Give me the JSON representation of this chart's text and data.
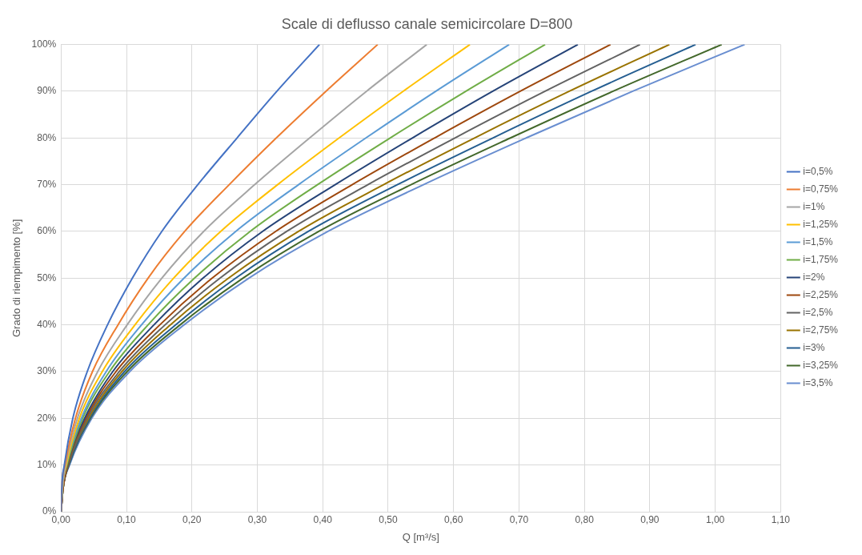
{
  "chart_data": {
    "type": "line",
    "title": "Scale di deflusso canale semicircolare D=800",
    "xlabel": "Q [m³/s]",
    "ylabel": "Grado di riempimento [%]",
    "xlim": [
      0,
      1.1
    ],
    "xticks": [
      {
        "value": 0,
        "label": "0,00"
      },
      {
        "value": 0.1,
        "label": "0,10"
      },
      {
        "value": 0.2,
        "label": "0,20"
      },
      {
        "value": 0.3,
        "label": "0,30"
      },
      {
        "value": 0.4,
        "label": "0,40"
      },
      {
        "value": 0.5,
        "label": "0,50"
      },
      {
        "value": 0.6,
        "label": "0,60"
      },
      {
        "value": 0.7,
        "label": "0,70"
      },
      {
        "value": 0.8,
        "label": "0,80"
      },
      {
        "value": 0.9,
        "label": "0,90"
      },
      {
        "value": 1.0,
        "label": "1,00"
      },
      {
        "value": 1.1,
        "label": "1,10"
      }
    ],
    "ylim": [
      0,
      100
    ],
    "yticks": [
      {
        "value": 0,
        "label": "0%"
      },
      {
        "value": 10,
        "label": "10%"
      },
      {
        "value": 20,
        "label": "20%"
      },
      {
        "value": 30,
        "label": "30%"
      },
      {
        "value": 40,
        "label": "40%"
      },
      {
        "value": 50,
        "label": "50%"
      },
      {
        "value": 60,
        "label": "60%"
      },
      {
        "value": 70,
        "label": "70%"
      },
      {
        "value": 80,
        "label": "80%"
      },
      {
        "value": 90,
        "label": "90%"
      },
      {
        "value": 100,
        "label": "100%"
      }
    ],
    "grid": true,
    "legend": "right",
    "marker": "none",
    "line_style": "solid",
    "series": [
      {
        "name": "i=0,5%",
        "color": "#4472c4",
        "x": [
          0,
          0.001,
          0.005,
          0.018,
          0.04,
          0.071,
          0.109,
          0.154,
          0.209,
          0.269,
          0.33,
          0.395
        ],
        "values": [
          0,
          5,
          10,
          20,
          30,
          40,
          50,
          60,
          70,
          80,
          90,
          100
        ]
      },
      {
        "name": "i=0,75%",
        "color": "#ed7d31",
        "x": [
          0,
          0.001,
          0.006,
          0.022,
          0.048,
          0.087,
          0.133,
          0.189,
          0.257,
          0.329,
          0.405,
          0.484
        ],
        "values": [
          0,
          5,
          10,
          20,
          30,
          40,
          50,
          60,
          70,
          80,
          90,
          100
        ]
      },
      {
        "name": "i=1%",
        "color": "#a5a5a5",
        "x": [
          0,
          0.002,
          0.007,
          0.025,
          0.056,
          0.101,
          0.154,
          0.218,
          0.296,
          0.38,
          0.467,
          0.559
        ],
        "values": [
          0,
          5,
          10,
          20,
          30,
          40,
          50,
          60,
          70,
          80,
          90,
          100
        ]
      },
      {
        "name": "i=1,25%",
        "color": "#ffc000",
        "x": [
          0,
          0.002,
          0.008,
          0.028,
          0.063,
          0.113,
          0.172,
          0.244,
          0.331,
          0.425,
          0.523,
          0.625
        ],
        "values": [
          0,
          5,
          10,
          20,
          30,
          40,
          50,
          60,
          70,
          80,
          90,
          100
        ]
      },
      {
        "name": "i=1,5%",
        "color": "#5b9bd5",
        "x": [
          0,
          0.002,
          0.008,
          0.031,
          0.069,
          0.123,
          0.188,
          0.267,
          0.363,
          0.466,
          0.573,
          0.685
        ],
        "values": [
          0,
          5,
          10,
          20,
          30,
          40,
          50,
          60,
          70,
          80,
          90,
          100
        ]
      },
      {
        "name": "i=1,75%",
        "color": "#70ad47",
        "x": [
          0,
          0.002,
          0.009,
          0.033,
          0.074,
          0.133,
          0.204,
          0.289,
          0.392,
          0.503,
          0.619,
          0.74
        ],
        "values": [
          0,
          5,
          10,
          20,
          30,
          40,
          50,
          60,
          70,
          80,
          90,
          100
        ]
      },
      {
        "name": "i=2%",
        "color": "#264478",
        "x": [
          0,
          0.002,
          0.009,
          0.036,
          0.079,
          0.142,
          0.217,
          0.308,
          0.419,
          0.537,
          0.66,
          0.79
        ],
        "values": [
          0,
          5,
          10,
          20,
          30,
          40,
          50,
          60,
          70,
          80,
          90,
          100
        ]
      },
      {
        "name": "i=2,25%",
        "color": "#9e480e",
        "x": [
          0,
          0.003,
          0.01,
          0.038,
          0.084,
          0.151,
          0.231,
          0.328,
          0.445,
          0.571,
          0.702,
          0.84
        ],
        "values": [
          0,
          5,
          10,
          20,
          30,
          40,
          50,
          60,
          70,
          80,
          90,
          100
        ]
      },
      {
        "name": "i=2,5%",
        "color": "#636363",
        "x": [
          0,
          0.003,
          0.011,
          0.04,
          0.089,
          0.159,
          0.243,
          0.345,
          0.469,
          0.602,
          0.74,
          0.885
        ],
        "values": [
          0,
          5,
          10,
          20,
          30,
          40,
          50,
          60,
          70,
          80,
          90,
          100
        ]
      },
      {
        "name": "i=2,75%",
        "color": "#997300",
        "x": [
          0,
          0.003,
          0.011,
          0.042,
          0.093,
          0.167,
          0.256,
          0.363,
          0.493,
          0.632,
          0.777,
          0.93
        ],
        "values": [
          0,
          5,
          10,
          20,
          30,
          40,
          50,
          60,
          70,
          80,
          90,
          100
        ]
      },
      {
        "name": "i=3%",
        "color": "#255e91",
        "x": [
          0,
          0.003,
          0.012,
          0.044,
          0.097,
          0.175,
          0.267,
          0.378,
          0.514,
          0.66,
          0.811,
          0.97
        ],
        "values": [
          0,
          5,
          10,
          20,
          30,
          40,
          50,
          60,
          70,
          80,
          90,
          100
        ]
      },
      {
        "name": "i=3,25%",
        "color": "#43682b",
        "x": [
          0,
          0.003,
          0.012,
          0.045,
          0.101,
          0.182,
          0.278,
          0.394,
          0.535,
          0.687,
          0.844,
          1.01
        ],
        "values": [
          0,
          5,
          10,
          20,
          30,
          40,
          50,
          60,
          70,
          80,
          90,
          100
        ]
      },
      {
        "name": "i=3,5%",
        "color": "#698ed0",
        "x": [
          0,
          0.003,
          0.013,
          0.047,
          0.105,
          0.188,
          0.287,
          0.408,
          0.554,
          0.711,
          0.874,
          1.045
        ],
        "values": [
          0,
          5,
          10,
          20,
          30,
          40,
          50,
          60,
          70,
          80,
          90,
          100
        ]
      }
    ]
  }
}
